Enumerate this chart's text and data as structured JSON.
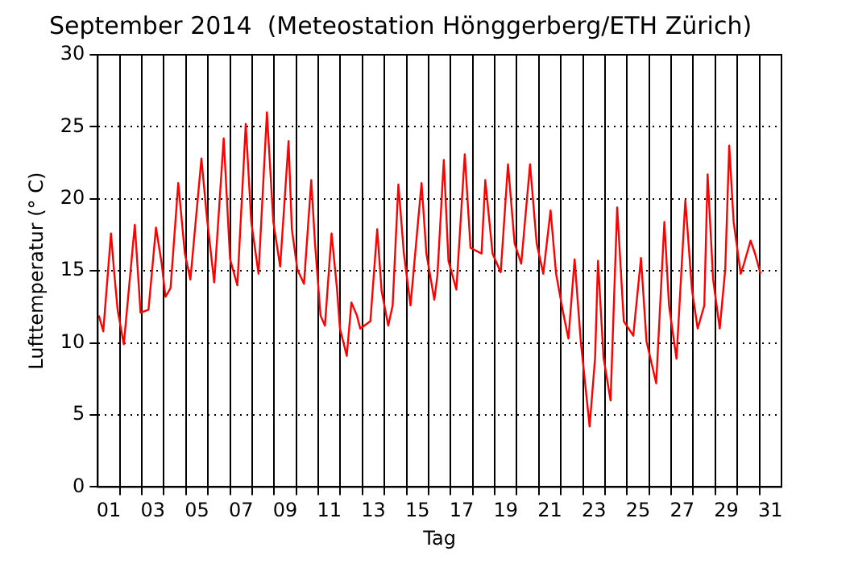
{
  "chart_data": {
    "type": "line",
    "title": "September 2014  (Meteostation Hönggerberg/ETH Zürich)",
    "xlabel": "Tag",
    "ylabel": "Lufttemperatur (° C)",
    "x": [
      1.05,
      1.25,
      1.6,
      1.75,
      1.9,
      2.18,
      2.68,
      2.94,
      3.3,
      3.64,
      3.9,
      4.07,
      4.3,
      4.65,
      4.95,
      5.2,
      5.7,
      5.95,
      6.28,
      6.71,
      7.0,
      7.33,
      7.71,
      7.96,
      8.29,
      8.67,
      8.96,
      9.27,
      9.65,
      9.8,
      10.05,
      10.35,
      10.68,
      10.85,
      11.1,
      11.3,
      11.6,
      11.85,
      11.98,
      12.29,
      12.5,
      12.75,
      12.9,
      13.36,
      13.67,
      13.87,
      14.17,
      14.37,
      14.63,
      14.88,
      15.18,
      15.68,
      15.9,
      16.26,
      16.4,
      16.69,
      16.9,
      17.26,
      17.64,
      17.9,
      18.4,
      18.57,
      18.9,
      19.27,
      19.6,
      19.9,
      20.2,
      20.6,
      20.9,
      21.2,
      21.53,
      21.78,
      22.1,
      22.34,
      22.62,
      22.9,
      23.3,
      23.55,
      23.68,
      23.93,
      24.25,
      24.55,
      24.85,
      25.28,
      25.63,
      25.88,
      26.32,
      26.69,
      26.9,
      27.24,
      27.64,
      27.94,
      28.2,
      28.5,
      28.65,
      28.9,
      29.2,
      29.45,
      29.63,
      29.83,
      30.15,
      30.3,
      30.6,
      30.8,
      31.05
    ],
    "series": [
      {
        "color": "#ff0000",
        "values": [
          11.9,
          10.8,
          17.6,
          14.8,
          12.3,
          9.9,
          18.2,
          12.1,
          12.3,
          18.0,
          15.5,
          13.2,
          13.8,
          21.1,
          16.2,
          14.4,
          22.8,
          18.7,
          14.2,
          24.2,
          15.8,
          14.0,
          25.2,
          18.4,
          14.8,
          26.0,
          18.4,
          15.3,
          24.0,
          17.9,
          15.1,
          14.1,
          21.3,
          16.9,
          11.9,
          11.2,
          17.6,
          13.7,
          11.0,
          9.1,
          12.8,
          11.9,
          11.0,
          11.5,
          17.9,
          13.6,
          11.2,
          12.6,
          21.0,
          16.2,
          12.6,
          21.1,
          16.2,
          13.0,
          14.7,
          22.7,
          15.7,
          13.7,
          23.1,
          16.6,
          16.2,
          21.3,
          16.2,
          14.9,
          22.4,
          16.9,
          15.5,
          22.4,
          16.9,
          14.8,
          19.2,
          14.8,
          12.1,
          10.3,
          15.8,
          10.1,
          4.2,
          9.0,
          15.7,
          9.0,
          6.0,
          19.4,
          11.5,
          10.5,
          15.9,
          10.1,
          7.2,
          18.4,
          12.6,
          8.9,
          19.9,
          13.7,
          11.0,
          12.6,
          21.7,
          14.4,
          11.0,
          15.1,
          23.7,
          18.4,
          14.8,
          15.5,
          17.1,
          16.2,
          14.8
        ]
      }
    ],
    "xlim": [
      1,
      32
    ],
    "xticks": [
      {
        "value": 1.5,
        "label": "01"
      },
      {
        "value": 2,
        "label": null
      },
      {
        "value": 3,
        "label": null
      },
      {
        "value": 3.5,
        "label": "03"
      },
      {
        "value": 4,
        "label": null
      },
      {
        "value": 5,
        "label": null
      },
      {
        "value": 5.5,
        "label": "05"
      },
      {
        "value": 6,
        "label": null
      },
      {
        "value": 7,
        "label": null
      },
      {
        "value": 7.5,
        "label": "07"
      },
      {
        "value": 8,
        "label": null
      },
      {
        "value": 9,
        "label": null
      },
      {
        "value": 9.5,
        "label": "09"
      },
      {
        "value": 10,
        "label": null
      },
      {
        "value": 11,
        "label": null
      },
      {
        "value": 11.5,
        "label": "11"
      },
      {
        "value": 12,
        "label": null
      },
      {
        "value": 13,
        "label": null
      },
      {
        "value": 13.5,
        "label": "13"
      },
      {
        "value": 14,
        "label": null
      },
      {
        "value": 15,
        "label": null
      },
      {
        "value": 15.5,
        "label": "15"
      },
      {
        "value": 16,
        "label": null
      },
      {
        "value": 17,
        "label": null
      },
      {
        "value": 17.5,
        "label": "17"
      },
      {
        "value": 18,
        "label": null
      },
      {
        "value": 19,
        "label": null
      },
      {
        "value": 19.5,
        "label": "19"
      },
      {
        "value": 20,
        "label": null
      },
      {
        "value": 21,
        "label": null
      },
      {
        "value": 21.5,
        "label": "21"
      },
      {
        "value": 22,
        "label": null
      },
      {
        "value": 23,
        "label": null
      },
      {
        "value": 23.5,
        "label": "23"
      },
      {
        "value": 24,
        "label": null
      },
      {
        "value": 25,
        "label": null
      },
      {
        "value": 25.5,
        "label": "25"
      },
      {
        "value": 26,
        "label": null
      },
      {
        "value": 27,
        "label": null
      },
      {
        "value": 27.5,
        "label": "27"
      },
      {
        "value": 28,
        "label": null
      },
      {
        "value": 29,
        "label": null
      },
      {
        "value": 29.5,
        "label": "29"
      },
      {
        "value": 30,
        "label": null
      },
      {
        "value": 31,
        "label": null
      },
      {
        "value": 31.5,
        "label": "31"
      }
    ],
    "ylim": [
      0,
      30
    ],
    "yticks": [
      0,
      5,
      10,
      15,
      20,
      25,
      30
    ],
    "grid": true,
    "legend": false,
    "marker": "none",
    "line_style": "solid"
  }
}
